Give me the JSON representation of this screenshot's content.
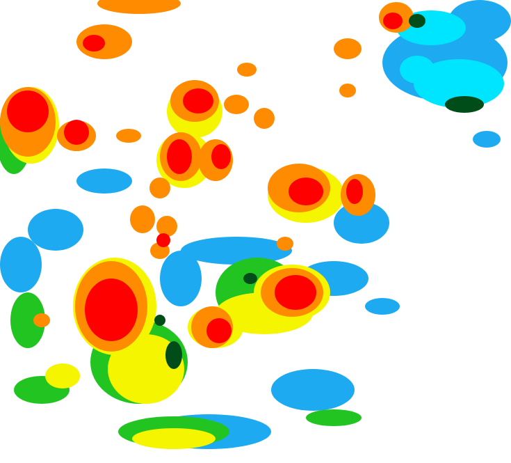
{
  "palette": {
    "background": "#ffffff",
    "light_blue": "#1eaaf0",
    "cyan": "#00e5ff",
    "dark_green": "#004d1a",
    "green": "#22c422",
    "yellow": "#f5f500",
    "orange": "#ff8c00",
    "red": "#ff0000"
  }
}
